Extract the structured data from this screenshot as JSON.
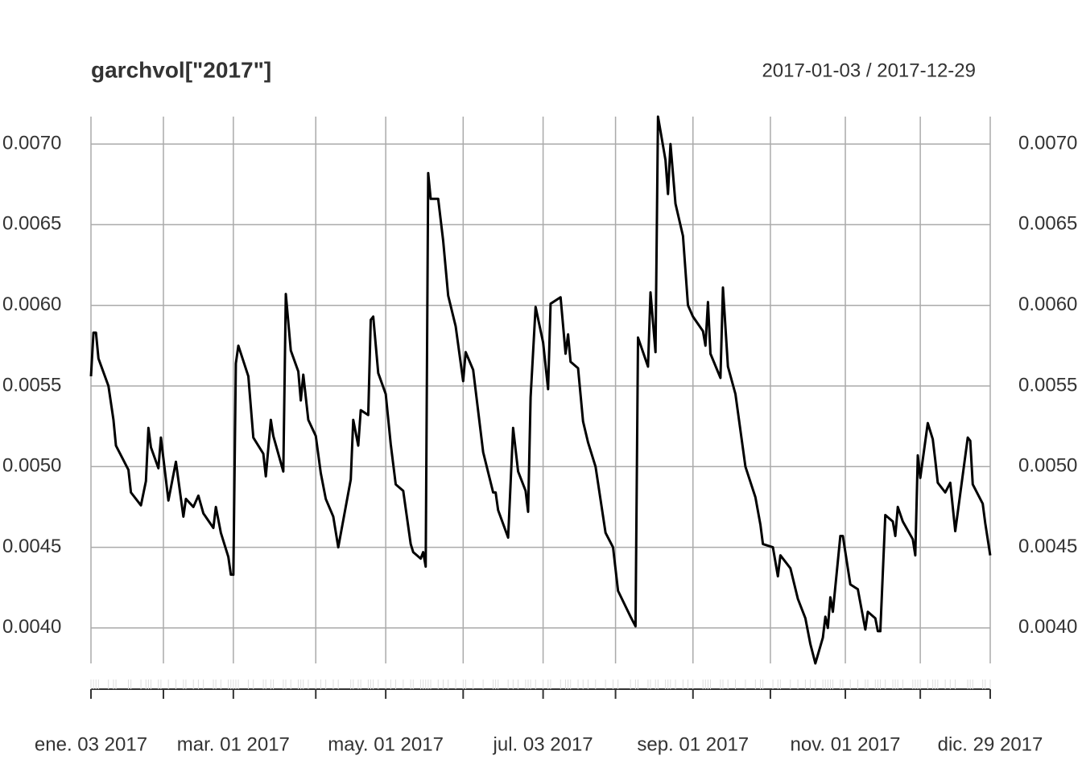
{
  "chart_data": {
    "type": "line",
    "title": "garchvol[\"2017\"]",
    "subtitle": "2017-01-03 / 2017-12-29",
    "color": "#000000",
    "grid": true,
    "xlim": [
      "2017-01-03",
      "2017-12-29"
    ],
    "ylim": [
      0.00378,
      0.00717
    ],
    "yticks": [
      {
        "value": 0.004,
        "label": "0.0040"
      },
      0.0045,
      {
        "value": 0.005,
        "label": "0.0050"
      },
      0.0055,
      {
        "value": 0.006,
        "label": "0.0060"
      },
      0.0065,
      {
        "value": 0.007,
        "label": "0.0070"
      }
    ],
    "xticks": [
      {
        "value": "2017-01-03",
        "label": "ene. 03 2017"
      },
      {
        "value": "2017-03-01",
        "label": "mar. 01 2017"
      },
      {
        "value": "2017-05-01",
        "label": "may. 01 2017"
      },
      {
        "value": "2017-07-03",
        "label": "jul. 03 2017"
      },
      {
        "value": "2017-09-01",
        "label": "sep. 01 2017"
      },
      {
        "value": "2017-11-01",
        "label": "nov. 01 2017"
      },
      {
        "value": "2017-12-29",
        "label": "dic. 29 2017"
      }
    ],
    "xgrid": [
      "2017-02-01",
      "2017-04-03",
      "2017-06-01",
      "2017-08-01",
      "2017-10-02",
      "2017-12-01"
    ],
    "x": [
      "2017-01-03",
      "2017-01-04",
      "2017-01-05",
      "2017-01-06",
      "2017-01-10",
      "2017-01-12",
      "2017-01-13",
      "2017-01-18",
      "2017-01-19",
      "2017-01-23",
      "2017-01-25",
      "2017-01-26",
      "2017-01-27",
      "2017-01-30",
      "2017-01-31",
      "2017-02-03",
      "2017-02-06",
      "2017-02-09",
      "2017-02-10",
      "2017-02-13",
      "2017-02-15",
      "2017-02-17",
      "2017-02-21",
      "2017-02-22",
      "2017-02-24",
      "2017-02-27",
      "2017-02-28",
      "2017-03-01",
      "2017-03-02",
      "2017-03-03",
      "2017-03-07",
      "2017-03-09",
      "2017-03-13",
      "2017-03-14",
      "2017-03-16",
      "2017-03-17",
      "2017-03-21",
      "2017-03-22",
      "2017-03-24",
      "2017-03-27",
      "2017-03-28",
      "2017-03-29",
      "2017-03-31",
      "2017-04-03",
      "2017-04-05",
      "2017-04-07",
      "2017-04-10",
      "2017-04-12",
      "2017-04-17",
      "2017-04-18",
      "2017-04-20",
      "2017-04-21",
      "2017-04-24",
      "2017-04-25",
      "2017-04-26",
      "2017-04-28",
      "2017-05-01",
      "2017-05-03",
      "2017-05-05",
      "2017-05-08",
      "2017-05-11",
      "2017-05-12",
      "2017-05-15",
      "2017-05-16",
      "2017-05-17",
      "2017-05-18",
      "2017-05-19",
      "2017-05-22",
      "2017-05-24",
      "2017-05-26",
      "2017-05-29",
      "2017-06-01",
      "2017-06-02",
      "2017-06-05",
      "2017-06-09",
      "2017-06-13",
      "2017-06-14",
      "2017-06-15",
      "2017-06-19",
      "2017-06-21",
      "2017-06-23",
      "2017-06-26",
      "2017-06-27",
      "2017-06-28",
      "2017-06-30",
      "2017-07-03",
      "2017-07-05",
      "2017-07-06",
      "2017-07-10",
      "2017-07-12",
      "2017-07-13",
      "2017-07-14",
      "2017-07-17",
      "2017-07-19",
      "2017-07-21",
      "2017-07-24",
      "2017-07-28",
      "2017-07-31",
      "2017-08-02",
      "2017-08-07",
      "2017-08-09",
      "2017-08-10",
      "2017-08-14",
      "2017-08-15",
      "2017-08-17",
      "2017-08-18",
      "2017-08-21",
      "2017-08-22",
      "2017-08-23",
      "2017-08-25",
      "2017-08-28",
      "2017-08-30",
      "2017-09-01",
      "2017-09-05",
      "2017-09-06",
      "2017-09-07",
      "2017-09-08",
      "2017-09-12",
      "2017-09-13",
      "2017-09-15",
      "2017-09-18",
      "2017-09-22",
      "2017-09-26",
      "2017-09-28",
      "2017-09-29",
      "2017-10-03",
      "2017-10-05",
      "2017-10-06",
      "2017-10-10",
      "2017-10-13",
      "2017-10-16",
      "2017-10-18",
      "2017-10-20",
      "2017-10-23",
      "2017-10-24",
      "2017-10-25",
      "2017-10-26",
      "2017-10-27",
      "2017-10-30",
      "2017-10-31",
      "2017-11-03",
      "2017-11-06",
      "2017-11-09",
      "2017-11-10",
      "2017-11-13",
      "2017-11-14",
      "2017-11-15",
      "2017-11-17",
      "2017-11-20",
      "2017-11-21",
      "2017-11-22",
      "2017-11-24",
      "2017-11-28",
      "2017-11-29",
      "2017-11-30",
      "2017-12-01",
      "2017-12-04",
      "2017-12-06",
      "2017-12-07",
      "2017-12-08",
      "2017-12-11",
      "2017-12-13",
      "2017-12-15",
      "2017-12-20",
      "2017-12-21",
      "2017-12-22",
      "2017-12-26",
      "2017-12-27",
      "2017-12-29"
    ],
    "values": [
      0.00556,
      0.00583,
      0.00583,
      0.00567,
      0.0055,
      0.00529,
      0.00513,
      0.00498,
      0.00484,
      0.00476,
      0.00491,
      0.00524,
      0.00512,
      0.00499,
      0.00518,
      0.00479,
      0.00503,
      0.00469,
      0.0048,
      0.00475,
      0.00482,
      0.00471,
      0.00462,
      0.00475,
      0.00459,
      0.00444,
      0.00433,
      0.00433,
      0.00564,
      0.00575,
      0.00556,
      0.00518,
      0.00508,
      0.00494,
      0.00529,
      0.00519,
      0.00497,
      0.00607,
      0.00572,
      0.00559,
      0.00541,
      0.00557,
      0.00529,
      0.00519,
      0.00496,
      0.0048,
      0.00469,
      0.0045,
      0.00492,
      0.00529,
      0.00513,
      0.00535,
      0.00532,
      0.00591,
      0.00593,
      0.00558,
      0.00545,
      0.00514,
      0.00489,
      0.00485,
      0.00452,
      0.00447,
      0.00443,
      0.00447,
      0.00438,
      0.00682,
      0.00666,
      0.00666,
      0.0064,
      0.00606,
      0.00587,
      0.00553,
      0.00571,
      0.0056,
      0.00509,
      0.00484,
      0.00484,
      0.00473,
      0.00456,
      0.00524,
      0.00497,
      0.00485,
      0.00472,
      0.00543,
      0.00599,
      0.00577,
      0.00548,
      0.00601,
      0.00605,
      0.0057,
      0.00582,
      0.00565,
      0.00561,
      0.00528,
      0.00515,
      0.005,
      0.00459,
      0.0045,
      0.00423,
      0.00407,
      0.00401,
      0.0058,
      0.00562,
      0.00608,
      0.00571,
      0.00717,
      0.0069,
      0.00669,
      0.007,
      0.00663,
      0.00643,
      0.006,
      0.00593,
      0.00584,
      0.00575,
      0.00602,
      0.0057,
      0.00555,
      0.00611,
      0.00562,
      0.00545,
      0.005,
      0.00481,
      0.00464,
      0.00452,
      0.0045,
      0.00432,
      0.00445,
      0.00437,
      0.00418,
      0.00406,
      0.0039,
      0.00378,
      0.00394,
      0.00407,
      0.004,
      0.00419,
      0.0041,
      0.00457,
      0.00457,
      0.00427,
      0.00424,
      0.00399,
      0.0041,
      0.00406,
      0.00398,
      0.00398,
      0.0047,
      0.00466,
      0.00457,
      0.00475,
      0.00466,
      0.00455,
      0.00445,
      0.00507,
      0.00493,
      0.00527,
      0.00517,
      0.00504,
      0.0049,
      0.00484,
      0.0049,
      0.0046,
      0.00518,
      0.00516,
      0.00489,
      0.00477,
      0.00465,
      0.00445
    ]
  }
}
